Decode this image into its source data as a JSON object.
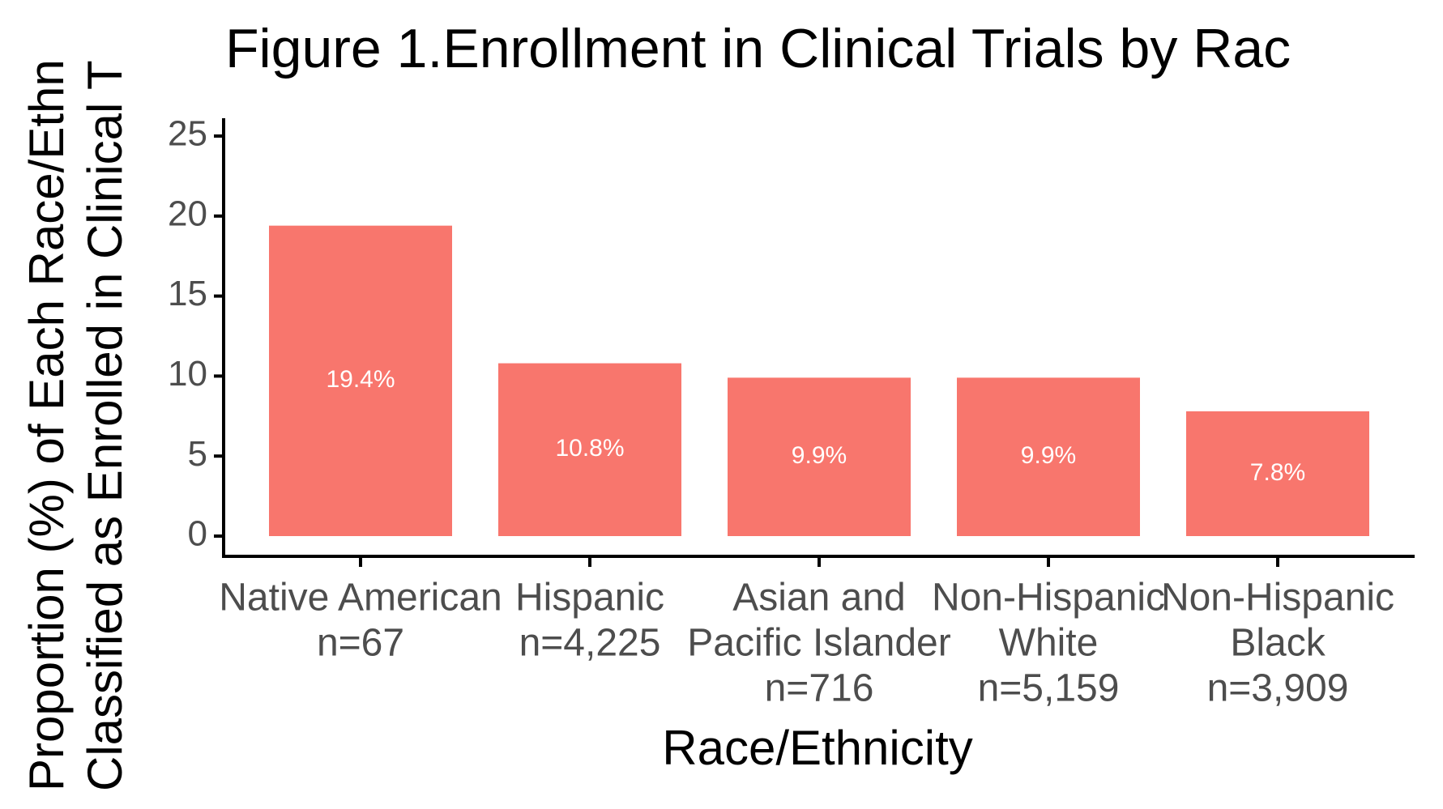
{
  "chart_data": {
    "type": "bar",
    "title": "Figure 1.Enrollment in Clinical Trials by Rac",
    "y_label": [
      "Proportion (%) of Each Race/Ethn",
      "Classified as Enrolled in Clinical T"
    ],
    "x_label": "Race/Ethnicity",
    "categories": [
      [
        "Native American",
        "n=67"
      ],
      [
        "Hispanic",
        "n=4,225"
      ],
      [
        "Asian and",
        "Pacific Islander",
        "n=716"
      ],
      [
        "Non-Hispanic",
        "White",
        "n=5,159"
      ],
      [
        "Non-Hispanic",
        "Black",
        "n=3,909"
      ]
    ],
    "values": [
      19.4,
      10.8,
      9.9,
      9.9,
      7.8
    ],
    "value_labels": [
      "19.4%",
      "10.8%",
      "9.9%",
      "9.9%",
      "7.8%"
    ],
    "color": "#f8766d",
    "ylim": [
      0,
      25
    ],
    "yticks": [
      0,
      5,
      10,
      15,
      20,
      25
    ],
    "grid": false
  }
}
